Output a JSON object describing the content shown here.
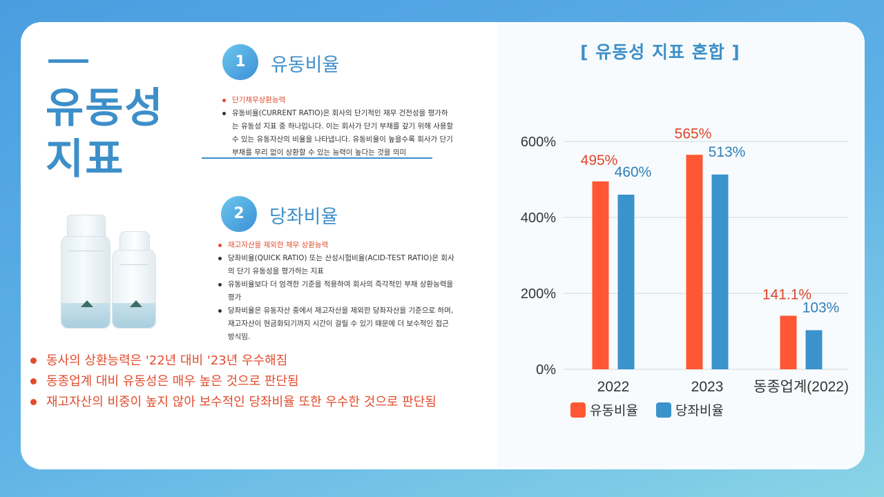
{
  "main_title": {
    "line1": "유동성",
    "line2": "지표"
  },
  "section1": {
    "number": "1",
    "title": "유동비율",
    "bullets": [
      "단기채무상환능력",
      "유동비율(CURRENT RATIO)은 회사의 단기적인 재무 건전성을 평가하는 유동성 지표 중 하나입니다. 이는 회사가 단기 부채를 갚기 위해 사용할 수 있는 유동자산의 비율을 나타냅니다. 유동비율이 높을수록 회사가 단기 부채를 무리 없이 상환할 수 있는 능력이 높다는 것을 의미"
    ]
  },
  "section2": {
    "number": "2",
    "title": "당좌비율",
    "bullets": [
      "재고자산을 제외한 채무 상환능력",
      "당좌비율(QUICK RATIO) 또는 산성시험비율(ACID-TEST RATIO)은 회사의 단기 유동성을 평가하는 지표",
      "유동비율보다 더 엄격한 기준을 적용하여 회사의 즉각적인 부채 상환능력을 평가",
      "당좌비율은 유동자산 중에서 재고자산을 제외한 당좌자산을 기준으로 하며, 재고자산이 현금화되기까지 시간이 걸릴 수 있기 때문에 더 보수적인 접근 방식임."
    ]
  },
  "summary": [
    "동사의 상환능력은 '22년 대비 '23년 우수해짐",
    "동종업계 대비 유동성은 매우 높은 것으로 판단됨",
    "재고자산의 비중이 높지 않아 보수적인 당좌비율 또한 우수한 것으로 판단됨"
  ],
  "colors": {
    "current": "#ff5733",
    "quick": "#3b93cc",
    "accent": "#3d8fc9",
    "red_text": "#e24b2c"
  },
  "chart_data": {
    "type": "bar",
    "title": "[ 유동성 지표 혼합 ]",
    "categories": [
      "2022",
      "2023",
      "동종업계(2022)"
    ],
    "series": [
      {
        "name": "유동비율",
        "values": [
          495,
          565,
          141.1
        ],
        "labels": [
          "495%",
          "565%",
          "141.1%"
        ],
        "color": "#ff5733",
        "label_color": "#e0452b"
      },
      {
        "name": "당좌비율",
        "values": [
          460,
          513,
          103
        ],
        "labels": [
          "460%",
          "513%",
          "103%"
        ],
        "color": "#3b93cc",
        "label_color": "#2f7fb8"
      }
    ],
    "ylim": [
      0,
      600
    ],
    "yticks": [
      0,
      200,
      400,
      600
    ],
    "ytick_labels": [
      "0%",
      "200%",
      "400%",
      "600%"
    ],
    "grid": true,
    "legend_position": "bottom"
  }
}
